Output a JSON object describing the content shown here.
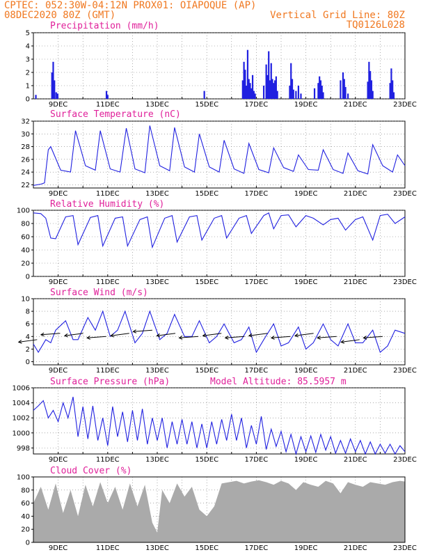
{
  "header": {
    "line1_left": "CPTEC:  052:30W-04:12N  PROX01: OIAPOQUE (AP)",
    "line2_left": "08DEC2020 80Z (GMT)",
    "line2_right": "Vertical Grid Line: 80Z",
    "line3_right": "TQ0126L028"
  },
  "x_ticks": [
    "9DEC",
    "11DEC",
    "13DEC",
    "15DEC",
    "17DEC",
    "19DEC",
    "21DEC",
    "23DEC"
  ],
  "colors": {
    "header": "#f07820",
    "title": "#e0209a",
    "series": "#2020e0",
    "cloud": "#aaaaaa"
  },
  "chart_data": [
    {
      "id": "precip",
      "type": "bar",
      "title": "Precipitation (mm/h)",
      "ylim": [
        0,
        5
      ],
      "yticks": [
        0,
        1,
        2,
        3,
        4,
        5
      ],
      "xlim": [
        8,
        23
      ],
      "x_unit": "days (December 2020)",
      "color": "#2020e0",
      "events": [
        [
          8.1,
          0.3
        ],
        [
          8.75,
          2.0
        ],
        [
          8.8,
          2.8
        ],
        [
          8.85,
          1.4
        ],
        [
          8.92,
          0.5
        ],
        [
          8.98,
          0.4
        ],
        [
          10.95,
          0.6
        ],
        [
          11.0,
          0.3
        ],
        [
          14.9,
          0.6
        ],
        [
          16.45,
          1.4
        ],
        [
          16.5,
          2.8
        ],
        [
          16.55,
          2.2
        ],
        [
          16.6,
          1.0
        ],
        [
          16.65,
          3.7
        ],
        [
          16.7,
          1.5
        ],
        [
          16.75,
          1.2
        ],
        [
          16.8,
          0.8
        ],
        [
          16.85,
          1.8
        ],
        [
          16.9,
          0.6
        ],
        [
          16.95,
          0.4
        ],
        [
          17.3,
          1.0
        ],
        [
          17.4,
          2.6
        ],
        [
          17.45,
          1.8
        ],
        [
          17.5,
          3.6
        ],
        [
          17.55,
          1.4
        ],
        [
          17.6,
          2.7
        ],
        [
          17.65,
          1.5
        ],
        [
          17.7,
          1.2
        ],
        [
          17.75,
          1.4
        ],
        [
          17.8,
          1.7
        ],
        [
          17.85,
          0.6
        ],
        [
          18.35,
          1.0
        ],
        [
          18.4,
          2.7
        ],
        [
          18.45,
          1.5
        ],
        [
          18.5,
          0.7
        ],
        [
          18.6,
          0.6
        ],
        [
          18.7,
          1.0
        ],
        [
          18.8,
          0.4
        ],
        [
          19.35,
          0.8
        ],
        [
          19.5,
          1.2
        ],
        [
          19.55,
          1.7
        ],
        [
          19.6,
          1.4
        ],
        [
          19.65,
          1.0
        ],
        [
          19.7,
          0.5
        ],
        [
          20.4,
          1.4
        ],
        [
          20.5,
          2.0
        ],
        [
          20.55,
          1.5
        ],
        [
          20.6,
          0.9
        ],
        [
          20.7,
          0.4
        ],
        [
          21.5,
          1.3
        ],
        [
          21.55,
          2.8
        ],
        [
          21.6,
          2.1
        ],
        [
          21.65,
          1.4
        ],
        [
          21.7,
          0.6
        ],
        [
          22.4,
          1.2
        ],
        [
          22.45,
          2.3
        ],
        [
          22.5,
          1.4
        ],
        [
          22.55,
          0.5
        ]
      ]
    },
    {
      "id": "temp",
      "type": "line",
      "title": "Surface Temperature (nC)",
      "ylim": [
        21.5,
        32
      ],
      "yticks": [
        22,
        24,
        26,
        28,
        30,
        32
      ],
      "xlim": [
        8,
        23
      ],
      "color": "#2020e0",
      "x": [
        8.0,
        8.3,
        8.45,
        8.6,
        8.7,
        9.1,
        9.5,
        9.7,
        10.1,
        10.5,
        10.7,
        11.1,
        11.5,
        11.75,
        12.1,
        12.5,
        12.7,
        13.1,
        13.5,
        13.7,
        14.1,
        14.5,
        14.7,
        15.1,
        15.5,
        15.7,
        16.1,
        16.5,
        16.7,
        17.1,
        17.5,
        17.7,
        18.1,
        18.5,
        18.7,
        19.1,
        19.5,
        19.7,
        20.1,
        20.5,
        20.7,
        21.1,
        21.5,
        21.7,
        22.1,
        22.5,
        22.7,
        23.0
      ],
      "y": [
        21.9,
        22.1,
        22.3,
        27.5,
        28.0,
        24.3,
        24.0,
        30.5,
        25.0,
        24.3,
        30.5,
        24.5,
        24.0,
        30.9,
        24.5,
        23.9,
        31.3,
        25.0,
        24.2,
        31.0,
        24.8,
        24.0,
        30.0,
        24.8,
        24.0,
        29.0,
        24.5,
        23.8,
        28.5,
        24.4,
        23.9,
        27.8,
        24.7,
        24.1,
        26.7,
        24.4,
        24.3,
        27.5,
        24.4,
        23.8,
        27.0,
        24.2,
        23.7,
        28.3,
        25.0,
        24.0,
        26.7,
        25.0
      ]
    },
    {
      "id": "rh",
      "type": "line",
      "title": "Relative Humidity (%)",
      "ylim": [
        0,
        100
      ],
      "yticks": [
        0,
        20,
        40,
        60,
        80,
        100
      ],
      "xlim": [
        8,
        23
      ],
      "color": "#2020e0",
      "x": [
        8.0,
        8.3,
        8.5,
        8.7,
        8.9,
        9.3,
        9.6,
        9.8,
        10.3,
        10.6,
        10.8,
        11.3,
        11.6,
        11.8,
        12.3,
        12.6,
        12.8,
        13.3,
        13.6,
        13.8,
        14.3,
        14.6,
        14.8,
        15.3,
        15.6,
        15.8,
        16.3,
        16.6,
        16.8,
        17.3,
        17.5,
        17.7,
        18.0,
        18.3,
        18.6,
        19.0,
        19.3,
        19.7,
        20.0,
        20.3,
        20.6,
        21.0,
        21.3,
        21.7,
        22.0,
        22.3,
        22.6,
        23.0
      ],
      "y": [
        96,
        95,
        88,
        58,
        57,
        90,
        92,
        48,
        89,
        92,
        46,
        88,
        90,
        46,
        86,
        90,
        44,
        88,
        92,
        52,
        90,
        92,
        55,
        88,
        92,
        58,
        88,
        92,
        65,
        92,
        96,
        72,
        92,
        93,
        75,
        92,
        88,
        78,
        86,
        88,
        70,
        86,
        90,
        55,
        92,
        94,
        80,
        90
      ]
    },
    {
      "id": "wind",
      "type": "line",
      "title": "Surface Wind (m/s)",
      "ylim": [
        -0.5,
        10
      ],
      "yticks": [
        0,
        2,
        4,
        6,
        8,
        10
      ],
      "xlim": [
        8,
        23
      ],
      "color": "#2020e0",
      "x": [
        8.0,
        8.2,
        8.5,
        8.7,
        8.9,
        9.3,
        9.6,
        9.8,
        10.2,
        10.5,
        10.8,
        11.1,
        11.4,
        11.7,
        12.1,
        12.4,
        12.7,
        13.1,
        13.4,
        13.7,
        14.1,
        14.4,
        14.7,
        15.1,
        15.4,
        15.7,
        16.1,
        16.4,
        16.7,
        17.0,
        17.3,
        17.7,
        18.0,
        18.3,
        18.7,
        19.0,
        19.3,
        19.7,
        20.0,
        20.3,
        20.7,
        21.0,
        21.3,
        21.7,
        22.0,
        22.3,
        22.6,
        23.0
      ],
      "y": [
        2.8,
        1.5,
        3.5,
        3.0,
        5.0,
        6.5,
        3.5,
        3.5,
        7.0,
        5.0,
        8.0,
        4.0,
        5.0,
        8.0,
        3.0,
        4.5,
        8.0,
        3.5,
        4.5,
        7.5,
        4.0,
        4.0,
        6.5,
        3.0,
        4.0,
        6.0,
        3.0,
        3.5,
        5.5,
        1.5,
        3.5,
        6.0,
        2.5,
        3.0,
        5.5,
        2.0,
        3.0,
        6.0,
        3.5,
        2.5,
        6.0,
        3.0,
        3.0,
        5.0,
        1.5,
        2.5,
        5.0,
        4.5
      ],
      "arrow_speeds": [
        3.5,
        4.5,
        4.5,
        4.0,
        4.5,
        5.0,
        4.5,
        4.0,
        4.5,
        4.0,
        4.5,
        4.0,
        4.5,
        4.0,
        3.5,
        4.0
      ]
    },
    {
      "id": "pressure",
      "type": "line",
      "title": "Surface Pressure (hPa)",
      "annotation": "Model Altitude: 85.5957 m",
      "ylim": [
        997.2,
        1006
      ],
      "yticks": [
        998,
        1000,
        1002,
        1004,
        1006
      ],
      "xlim": [
        8,
        23
      ],
      "color": "#2020e0",
      "x": [
        8.0,
        8.2,
        8.4,
        8.6,
        8.8,
        9.0,
        9.2,
        9.4,
        9.6,
        9.8,
        10.0,
        10.2,
        10.4,
        10.6,
        10.8,
        11.0,
        11.2,
        11.4,
        11.6,
        11.8,
        12.0,
        12.2,
        12.4,
        12.6,
        12.8,
        13.0,
        13.2,
        13.4,
        13.6,
        13.8,
        14.0,
        14.2,
        14.4,
        14.6,
        14.8,
        15.0,
        15.2,
        15.4,
        15.6,
        15.8,
        16.0,
        16.2,
        16.4,
        16.6,
        16.8,
        17.0,
        17.2,
        17.4,
        17.6,
        17.8,
        18.0,
        18.2,
        18.4,
        18.6,
        18.8,
        19.0,
        19.2,
        19.4,
        19.6,
        19.8,
        20.0,
        20.2,
        20.4,
        20.6,
        20.8,
        21.0,
        21.2,
        21.4,
        21.6,
        21.8,
        22.0,
        22.2,
        22.4,
        22.6,
        22.8,
        23.0
      ],
      "y": [
        1003.0,
        1003.6,
        1004.3,
        1002.0,
        1003.0,
        1001.5,
        1004.0,
        1002.0,
        1004.8,
        999.5,
        1003.5,
        999.2,
        1003.6,
        999.0,
        1002.0,
        998.3,
        1003.5,
        999.5,
        1002.8,
        998.8,
        1003.0,
        999.0,
        1003.2,
        998.5,
        1002.0,
        999.0,
        1002.0,
        998.0,
        1001.5,
        998.5,
        1001.8,
        998.5,
        1001.5,
        998.0,
        1001.2,
        998.0,
        1001.5,
        998.5,
        1001.8,
        999.0,
        1002.5,
        999.0,
        1002.0,
        998.0,
        1001.0,
        998.5,
        1002.2,
        997.8,
        1000.5,
        998.2,
        1000.2,
        997.5,
        999.8,
        997.2,
        999.5,
        997.5,
        999.6,
        997.4,
        999.8,
        997.7,
        999.5,
        997.3,
        999.0,
        997.3,
        999.2,
        997.5,
        999.0,
        997.2,
        998.8,
        997.2,
        998.5,
        997.3,
        998.5,
        997.2,
        998.3,
        997.5
      ]
    },
    {
      "id": "cloud",
      "type": "area",
      "title": "Cloud Cover (%)",
      "ylim": [
        0,
        100
      ],
      "yticks": [
        0,
        20,
        40,
        60,
        80,
        100
      ],
      "xlim": [
        8,
        23
      ],
      "color": "#aaaaaa",
      "x": [
        8.0,
        8.3,
        8.6,
        8.9,
        9.2,
        9.5,
        9.8,
        10.1,
        10.4,
        10.7,
        11.0,
        11.3,
        11.6,
        11.9,
        12.2,
        12.5,
        12.8,
        13.0,
        13.2,
        13.5,
        13.8,
        14.1,
        14.4,
        14.7,
        15.0,
        15.3,
        15.6,
        15.9,
        16.2,
        16.5,
        16.8,
        17.1,
        17.4,
        17.7,
        18.0,
        18.3,
        18.6,
        18.9,
        19.2,
        19.5,
        19.8,
        20.1,
        20.4,
        20.7,
        21.0,
        21.3,
        21.6,
        21.9,
        22.2,
        22.5,
        22.8,
        23.0
      ],
      "y": [
        60,
        85,
        50,
        90,
        45,
        80,
        40,
        88,
        55,
        92,
        60,
        85,
        50,
        90,
        55,
        88,
        30,
        15,
        80,
        60,
        90,
        70,
        85,
        50,
        40,
        55,
        90,
        92,
        94,
        90,
        93,
        95,
        92,
        88,
        94,
        90,
        80,
        92,
        88,
        85,
        94,
        90,
        75,
        92,
        88,
        85,
        92,
        90,
        88,
        92,
        94,
        93
      ]
    }
  ]
}
